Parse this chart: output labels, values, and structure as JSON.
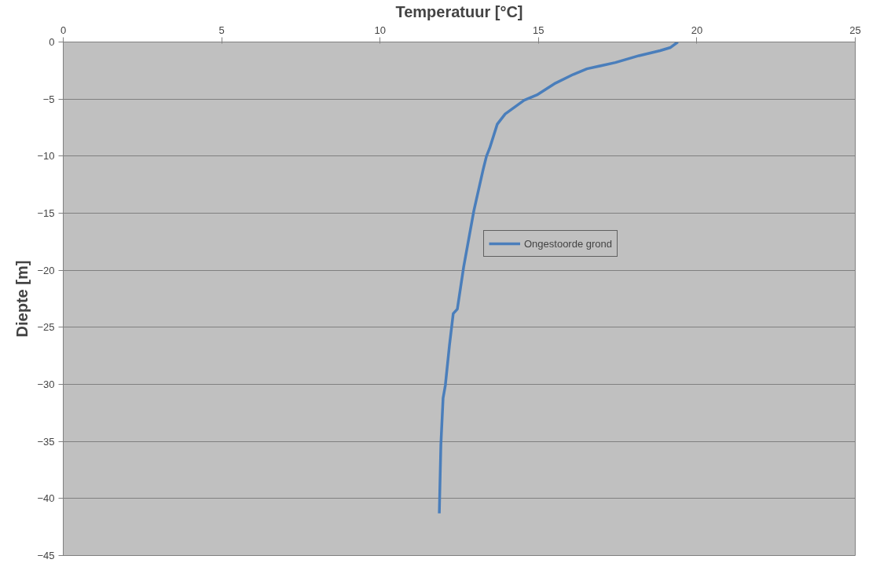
{
  "chart_data": {
    "type": "line",
    "xlabel": "Temperatuur [°C]",
    "ylabel": "Diepte [m]",
    "xlim": [
      0,
      25
    ],
    "xticks": [
      0,
      5,
      10,
      15,
      20,
      25
    ],
    "ylim": [
      -45,
      0
    ],
    "yticks": [
      -45,
      -40,
      -35,
      -30,
      -25,
      -20,
      -15,
      -10,
      -5,
      0
    ],
    "grid": "y",
    "legend": "right",
    "marker": "none",
    "line_style": "solid",
    "series": [
      {
        "name": "Ongestoorde grond",
        "color": "#4a7ebb",
        "x": [
          19.4,
          19.17,
          18.84,
          18.17,
          17.43,
          16.53,
          16.1,
          15.54,
          14.95,
          14.55,
          13.95,
          13.7,
          13.46,
          13.36,
          13.26,
          12.96,
          12.64,
          12.44,
          12.31,
          12.19,
          12.06,
          11.99,
          11.92,
          11.87
        ],
        "values": [
          0,
          -0.48,
          -0.76,
          -1.2,
          -1.8,
          -2.35,
          -2.84,
          -3.6,
          -4.64,
          -5.1,
          -6.3,
          -7.2,
          -9.3,
          -10,
          -11.1,
          -14.8,
          -19.7,
          -23.4,
          -23.8,
          -26.6,
          -30.1,
          -31.2,
          -35.3,
          -41.3
        ]
      }
    ]
  }
}
